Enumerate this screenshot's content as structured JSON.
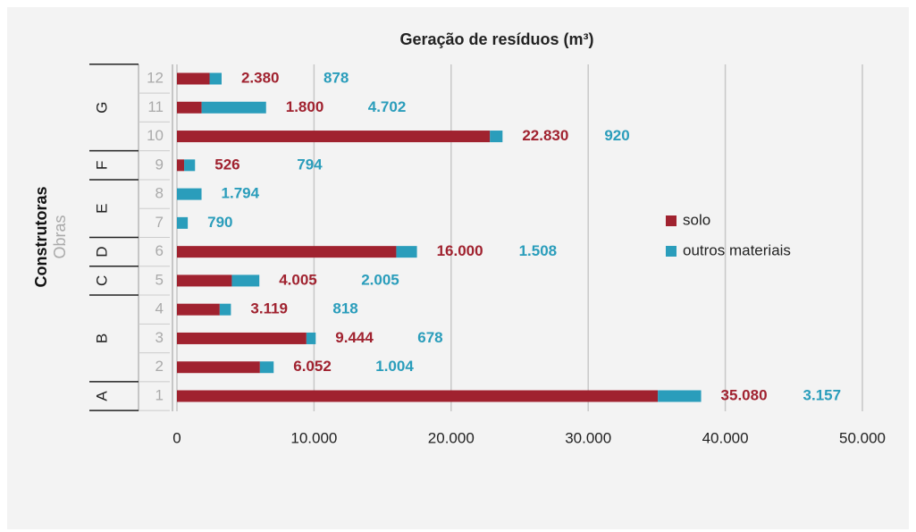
{
  "chart_data": {
    "type": "stacked-bar-horizontal",
    "title": "Geração de resíduos (m³)",
    "group_axis_label": "Construtoras",
    "category_axis_label": "Obras",
    "categories": [
      "1",
      "2",
      "3",
      "4",
      "5",
      "6",
      "7",
      "8",
      "9",
      "10",
      "11",
      "12"
    ],
    "groups": [
      {
        "label": "A",
        "count": 1
      },
      {
        "label": "B",
        "count": 3
      },
      {
        "label": "C",
        "count": 1
      },
      {
        "label": "D",
        "count": 1
      },
      {
        "label": "E",
        "count": 2
      },
      {
        "label": "F",
        "count": 1
      },
      {
        "label": "G",
        "count": 3
      }
    ],
    "series": [
      {
        "name": "solo",
        "color": "#a0222f",
        "values": [
          35080,
          6052,
          9444,
          3119,
          4005,
          16000,
          null,
          null,
          526,
          22830,
          1800,
          2380
        ],
        "value_labels": [
          "35.080",
          "6.052",
          "9.444",
          "3.119",
          "4.005",
          "16.000",
          null,
          null,
          "526",
          "22.830",
          "1.800",
          "2.380"
        ]
      },
      {
        "name": "outros materiais",
        "color": "#2a9dbb",
        "values": [
          3157,
          1004,
          678,
          818,
          2005,
          1508,
          790,
          1794,
          794,
          920,
          4702,
          878
        ],
        "value_labels": [
          "3.157",
          "1.004",
          "678",
          "818",
          "2.005",
          "1.508",
          "790",
          "1.794",
          "794",
          "920",
          "4.702",
          "878"
        ]
      }
    ],
    "xlim": [
      0,
      50000
    ],
    "xticks": [
      0,
      {
        "value": 10000,
        "label": "10.000"
      },
      {
        "value": 20000,
        "label": "20.000"
      },
      {
        "value": 30000,
        "label": "30.000"
      },
      {
        "value": 40000,
        "label": "40.000"
      },
      {
        "value": 50000,
        "label": "50.000"
      }
    ],
    "grid": true,
    "legend": "right"
  }
}
